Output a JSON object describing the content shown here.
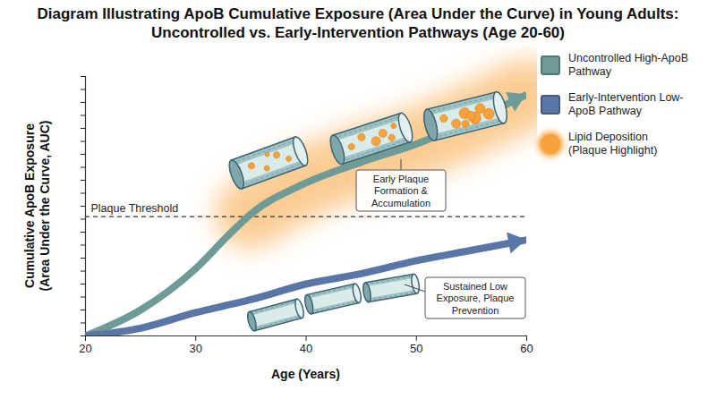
{
  "chart_data": {
    "type": "line",
    "title": "Diagram Illustrating ApoB Cumulative Exposure (Area Under the Curve) in Young Adults: Uncontrolled vs. Early-Intervention Pathways (Age 20-60)",
    "x_label": "Age (Years)",
    "y_label": "Cumulative ApoB Exposure (Area Under the Curve, AUC)",
    "x": [
      20,
      25,
      30,
      33,
      35,
      40,
      45,
      50,
      55,
      60
    ],
    "series": [
      {
        "name": "Uncontrolled High-ApoB Pathway",
        "color": "#6f9b97",
        "marker": "arrow",
        "values": [
          0,
          10,
          26,
          39,
          47,
          59,
          67,
          74,
          83,
          93
        ]
      },
      {
        "name": "Early-Intervention Low-ApoB Pathway",
        "color": "#5a76a6",
        "marker": "arrow",
        "values": [
          0,
          3,
          9,
          12,
          14,
          20,
          24,
          29,
          33,
          37
        ]
      }
    ],
    "xlim": [
      20,
      60
    ],
    "xticks": [
      20,
      30,
      40,
      50,
      60
    ],
    "ylim": [
      0,
      100
    ],
    "yticks": [
      0,
      5,
      10,
      15,
      20,
      25,
      30,
      35,
      40,
      45,
      50,
      55,
      60,
      65,
      70,
      75,
      80,
      85,
      90,
      95,
      100
    ],
    "tick_labels": "x",
    "legend": "right",
    "threshold": {
      "label": "Plaque Threshold",
      "value": 46
    },
    "highlight": {
      "name": "Lipid Deposition (Plaque Highlight)",
      "color": "#f7a23b"
    },
    "annotations": [
      "Early Plaque Formation & Accumulation",
      "Sustained Low Exposure, Plaque Prevention"
    ]
  }
}
